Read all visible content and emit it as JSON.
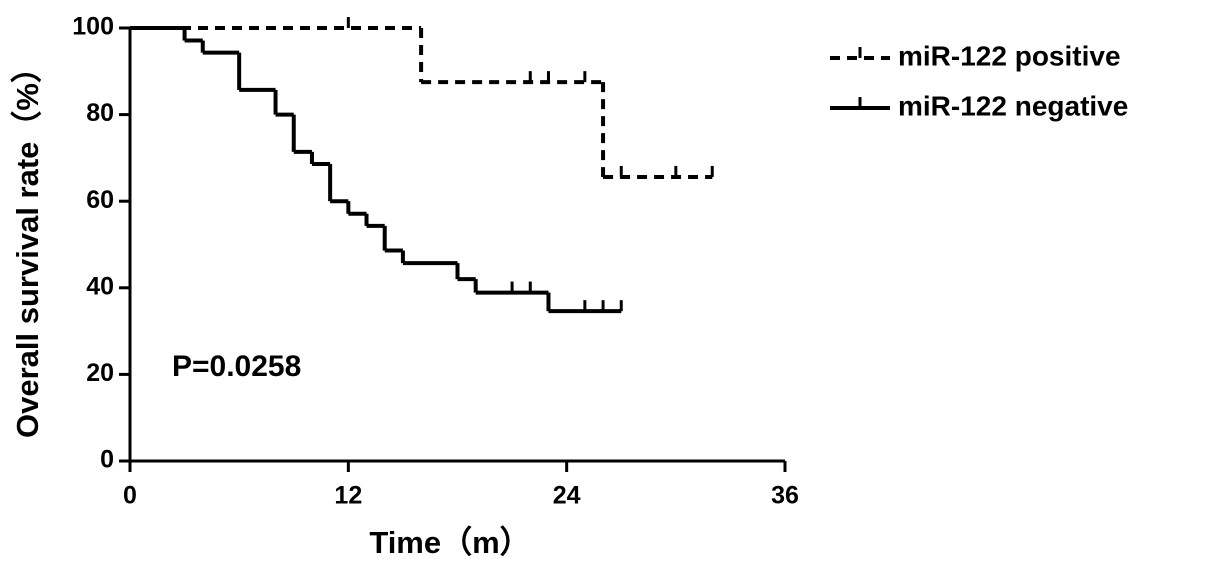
{
  "chart_data": {
    "type": "step",
    "xlabel": "Time（m）",
    "ylabel": "Overall survival rate（%）",
    "annotation": "P=0.0258",
    "xlim": [
      0,
      36
    ],
    "xticks": [
      0,
      12,
      24,
      36
    ],
    "ylim": [
      0,
      100
    ],
    "yticks": [
      0,
      20,
      40,
      60,
      80,
      100
    ],
    "series": [
      {
        "name": "miR-122 positive",
        "color": "#000000",
        "dash": true,
        "x": [
          0,
          16,
          26,
          32
        ],
        "values": [
          100,
          87.5,
          65.6,
          65.6
        ],
        "censor_x": [
          12,
          22,
          23,
          25,
          27,
          30,
          32
        ],
        "censor_values": [
          100,
          87.5,
          87.5,
          87.5,
          65.6,
          65.6,
          65.6
        ]
      },
      {
        "name": "miR-122 negative",
        "color": "#000000",
        "dash": false,
        "x": [
          0,
          3,
          4,
          6,
          8,
          9,
          10,
          11,
          12,
          13,
          14,
          15,
          18,
          19,
          23,
          27
        ],
        "values": [
          100,
          97.1,
          94.3,
          85.7,
          80,
          71.4,
          68.6,
          60,
          57.1,
          54.3,
          48.6,
          45.7,
          42,
          38.9,
          34.6,
          34.6
        ],
        "censor_x": [
          21,
          22,
          25,
          26,
          27
        ],
        "censor_values": [
          38.9,
          38.9,
          34.6,
          34.6,
          34.6
        ]
      }
    ]
  }
}
